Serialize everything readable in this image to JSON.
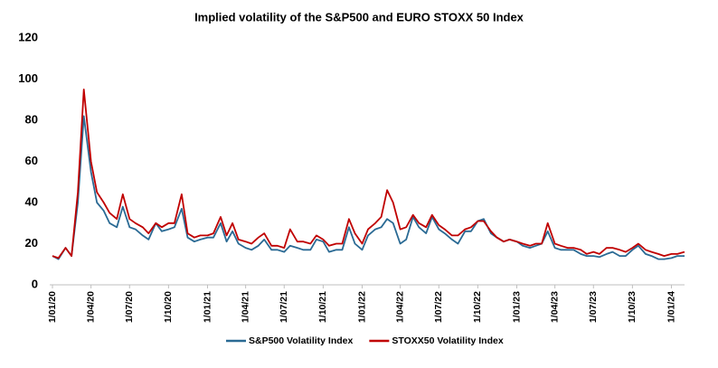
{
  "chart_data": {
    "type": "line",
    "title": "Implied volatility of the S&P500 and EURO STOXX 50 Index",
    "x": [
      "1/01/20",
      "15/01/20",
      "1/02/20",
      "15/02/20",
      "1/03/20",
      "15/03/20",
      "1/04/20",
      "15/04/20",
      "1/05/20",
      "15/05/20",
      "1/06/20",
      "15/06/20",
      "1/07/20",
      "15/07/20",
      "1/08/20",
      "15/08/20",
      "1/09/20",
      "15/09/20",
      "1/10/20",
      "15/10/20",
      "1/11/20",
      "15/11/20",
      "1/12/20",
      "15/12/20",
      "1/01/21",
      "15/01/21",
      "1/02/21",
      "15/02/21",
      "1/03/21",
      "15/03/21",
      "1/04/21",
      "15/04/21",
      "1/05/21",
      "15/05/21",
      "1/06/21",
      "15/06/21",
      "1/07/21",
      "15/07/21",
      "1/08/21",
      "15/08/21",
      "1/09/21",
      "15/09/21",
      "1/10/21",
      "15/10/21",
      "1/11/21",
      "15/11/21",
      "1/12/21",
      "15/12/21",
      "1/01/22",
      "15/01/22",
      "1/02/22",
      "15/02/22",
      "1/03/22",
      "15/03/22",
      "1/04/22",
      "15/04/22",
      "1/05/22",
      "15/05/22",
      "1/06/22",
      "15/06/22",
      "1/07/22",
      "15/07/22",
      "1/08/22",
      "15/08/22",
      "1/09/22",
      "15/09/22",
      "1/10/22",
      "15/10/22",
      "1/11/22",
      "15/11/22",
      "1/12/22",
      "15/12/22",
      "1/01/23",
      "15/01/23",
      "1/02/23",
      "15/02/23",
      "1/03/23",
      "15/03/23",
      "1/04/23",
      "15/04/23",
      "1/05/23",
      "15/05/23",
      "1/06/23",
      "15/06/23",
      "1/07/23",
      "15/07/23",
      "1/08/23",
      "15/08/23",
      "1/09/23",
      "15/09/23",
      "1/10/23",
      "15/10/23",
      "1/11/23",
      "15/11/23",
      "1/12/23",
      "15/12/23",
      "1/01/24",
      "15/01/24",
      "1/02/24"
    ],
    "series": [
      {
        "name": "S&P500 Volatility Index",
        "color": "#2a6a94",
        "values": [
          14,
          12.5,
          18,
          14,
          40,
          82,
          55,
          40,
          36,
          30,
          28,
          38,
          28,
          27,
          24,
          22,
          30,
          26,
          27,
          28,
          37,
          23,
          21,
          22,
          23,
          23,
          30,
          21,
          26,
          20,
          18,
          17,
          19,
          22,
          17,
          17,
          16,
          19,
          18,
          17,
          17,
          22,
          21,
          16,
          17,
          17,
          28,
          20,
          17,
          24,
          27,
          28,
          32,
          30,
          20,
          22,
          33,
          28,
          25,
          33,
          27,
          25,
          22,
          20,
          26,
          26,
          31,
          32,
          25,
          23,
          21,
          22,
          21,
          19,
          18,
          19,
          20,
          26,
          18,
          17,
          17,
          17,
          15,
          14,
          14,
          13.5,
          15,
          16,
          14,
          14,
          17,
          19,
          15,
          14,
          12.5,
          12.5,
          13,
          14,
          14
        ]
      },
      {
        "name": "STOXX50 Volatility Index",
        "color": "#c00000",
        "values": [
          14,
          13,
          18,
          14,
          45,
          95,
          60,
          45,
          40,
          35,
          32,
          44,
          32,
          30,
          28,
          25,
          30,
          28,
          30,
          30,
          44,
          25,
          23,
          24,
          24,
          25,
          33,
          24,
          30,
          22,
          21,
          20,
          23,
          25,
          19,
          19,
          18,
          27,
          21,
          21,
          20,
          24,
          22,
          19,
          20,
          20,
          32,
          25,
          20,
          27,
          30,
          33,
          46,
          40,
          27,
          28,
          34,
          30,
          28,
          34,
          29,
          27,
          24,
          24,
          27,
          28,
          31,
          31,
          26,
          23,
          21,
          22,
          21,
          20,
          19,
          20,
          20,
          30,
          20,
          19,
          18,
          18,
          17,
          15,
          16,
          15,
          18,
          18,
          17,
          16,
          18,
          20,
          17,
          16,
          15,
          14,
          15,
          15,
          16
        ]
      }
    ],
    "xlim": [
      "1/01/20",
      "1/02/24"
    ],
    "xticks": [
      "1/01/20",
      "1/04/20",
      "1/07/20",
      "1/10/20",
      "1/01/21",
      "1/04/21",
      "1/07/21",
      "1/10/21",
      "1/01/22",
      "1/04/22",
      "1/07/22",
      "1/10/22",
      "1/01/23",
      "1/04/23",
      "1/07/23",
      "1/10/23",
      "1/01/24"
    ],
    "ylim": [
      0,
      120
    ],
    "yticks": [
      0,
      20,
      40,
      60,
      80,
      100,
      120
    ],
    "grid": false,
    "legend": "bottom"
  }
}
